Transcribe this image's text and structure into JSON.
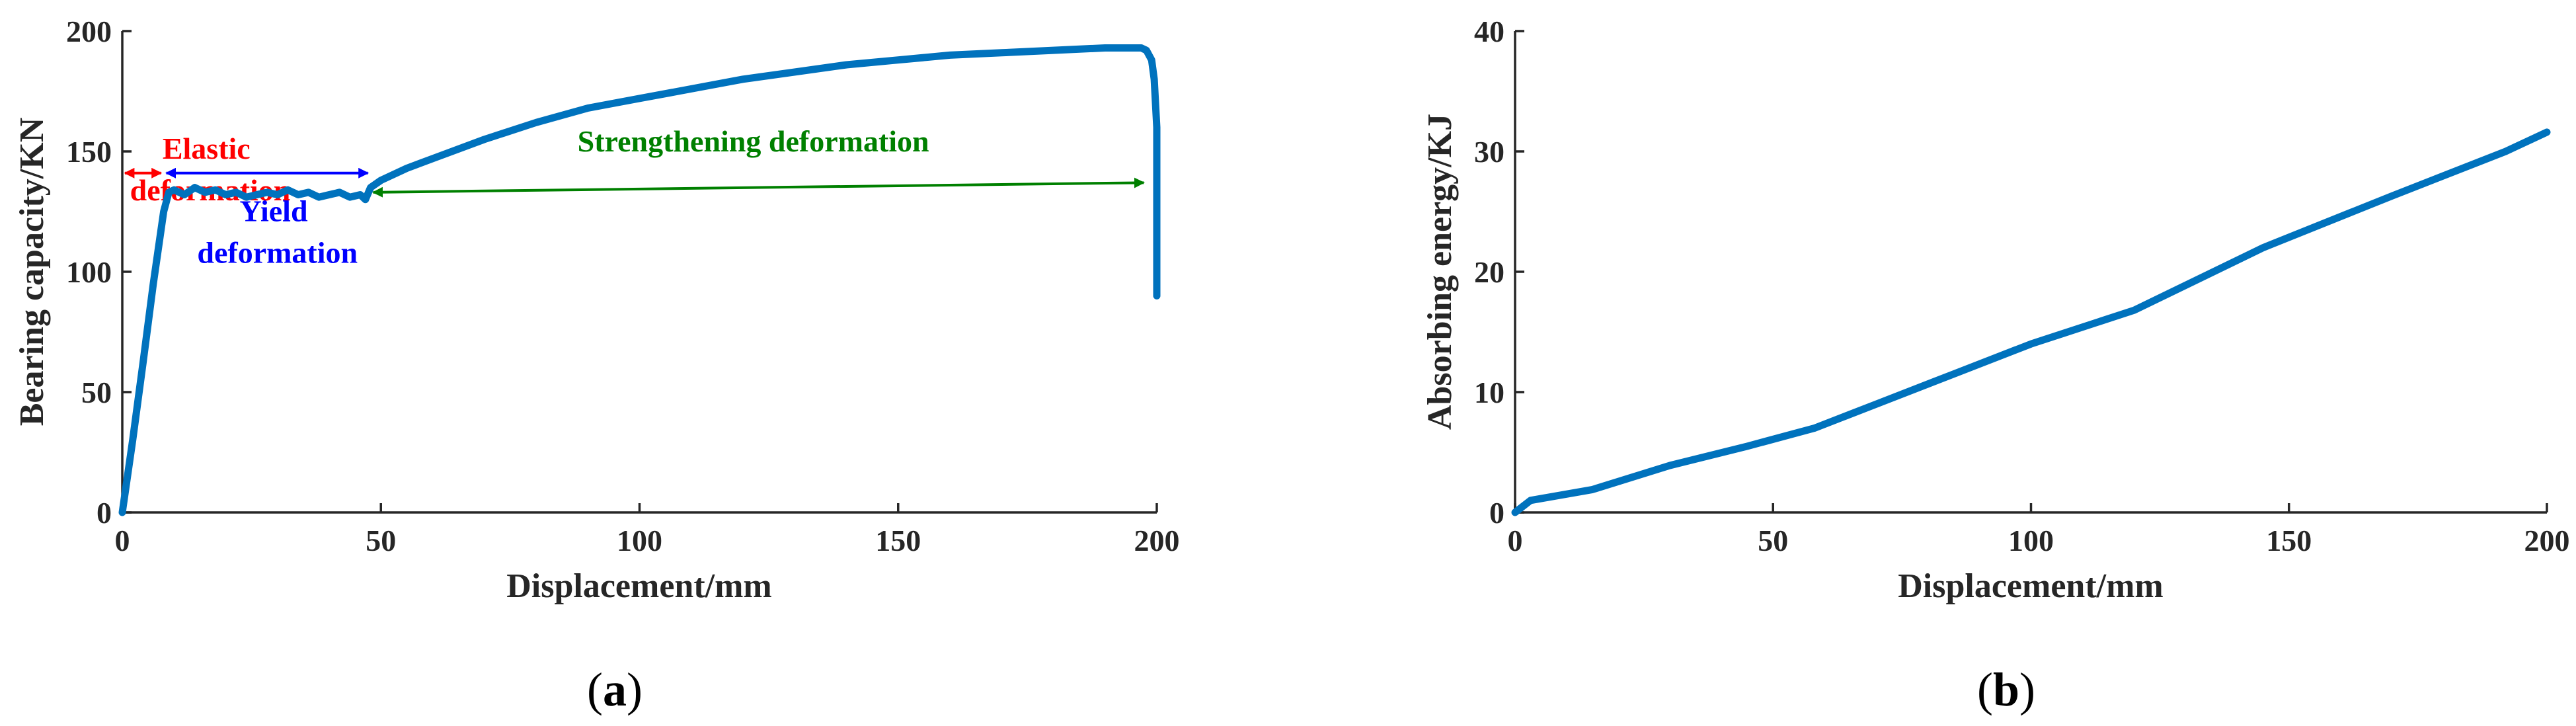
{
  "chart_data": [
    {
      "type": "line",
      "panel_label": {
        "open": "(",
        "letter": "a",
        "close": ")"
      },
      "xlabel": "Displacement/mm",
      "ylabel": "Bearing capacity/KN",
      "xlim": [
        0,
        200
      ],
      "ylim": [
        0,
        200
      ],
      "xticks": [
        0,
        50,
        100,
        150,
        200
      ],
      "yticks": [
        0,
        50,
        100,
        150,
        200
      ],
      "grid": false,
      "line_color": "#0072BD",
      "series": [
        {
          "x": [
            0,
            2,
            4,
            6,
            8,
            9,
            10,
            12,
            14,
            16,
            18,
            20,
            22,
            24,
            26,
            28,
            30,
            32,
            34,
            36,
            38,
            40,
            42,
            44,
            46,
            47,
            48,
            50,
            55,
            60,
            70,
            80,
            90,
            100,
            110,
            120,
            130,
            140,
            150,
            160,
            170,
            180,
            190,
            195,
            197,
            198,
            199,
            199.5,
            200,
            200
          ],
          "y": [
            0,
            30,
            62,
            95,
            125,
            133,
            134,
            132,
            135,
            133,
            134,
            132,
            133,
            131,
            132,
            133,
            132,
            134,
            132,
            133,
            131,
            132,
            133,
            131,
            132,
            130,
            135,
            138,
            143,
            147,
            155,
            162,
            168,
            172,
            176,
            180,
            183,
            186,
            188,
            190,
            191,
            192,
            193,
            193,
            193,
            192,
            188,
            180,
            160,
            90
          ]
        }
      ],
      "annotations": [
        {
          "lines": [
            "Elastic",
            "deformation"
          ],
          "color": "#FF0000",
          "x": 17,
          "y": 147,
          "arrow_from": 0,
          "arrow_to": 8,
          "arrow_y": 141
        },
        {
          "lines": [
            "Yield",
            "deformation"
          ],
          "color": "#0000FF",
          "x": 30,
          "y": 121,
          "arrow_from": 8,
          "arrow_to": 48,
          "arrow_y": 141
        },
        {
          "lines": [
            "Strengthening deformation"
          ],
          "color": "#008000",
          "x": 122,
          "y": 150,
          "arrow_from": 48,
          "arrow_to": 198,
          "arrow_y_from": 133,
          "arrow_y_to": 137
        }
      ]
    },
    {
      "type": "line",
      "panel_label": {
        "open": "(",
        "letter": "b",
        "close": ")"
      },
      "xlabel": "Displacement/mm",
      "ylabel": "Absorbing energy/KJ",
      "xlim": [
        0,
        200
      ],
      "ylim": [
        0,
        40
      ],
      "xticks": [
        0,
        50,
        100,
        150,
        200
      ],
      "yticks": [
        0,
        10,
        20,
        30,
        40
      ],
      "grid": false,
      "line_color": "#0072BD",
      "series": [
        {
          "x": [
            0,
            3,
            15,
            30,
            45,
            58,
            70,
            85,
            100,
            120,
            145,
            170,
            192,
            200
          ],
          "y": [
            0,
            1.0,
            1.9,
            3.9,
            5.5,
            7.0,
            9.0,
            11.5,
            14.0,
            16.8,
            22.0,
            26.3,
            30.0,
            31.6
          ]
        }
      ]
    }
  ]
}
